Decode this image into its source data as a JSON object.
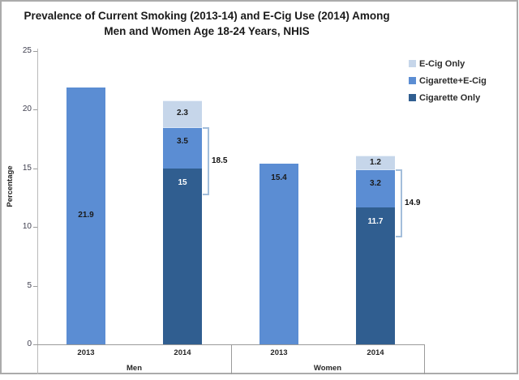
{
  "chart_data": {
    "type": "bar",
    "stacked": true,
    "title": "Prevalence of Current Smoking (2013-14) and E-Cig Use (2014) Among Men and Women Age 18-24 Years, NHIS",
    "title_line1": "Prevalence of Current Smoking (2013-14) and E-Cig Use (2014) Among",
    "title_line2": "Men and Women Age 18-24 Years, NHIS",
    "xlabel": "",
    "ylabel": "Percentage",
    "ylim": [
      0,
      25
    ],
    "yticks": [
      25,
      20,
      15,
      10,
      5,
      0
    ],
    "grid": false,
    "legend_position": "top-right",
    "legend": [
      {
        "label": "E-Cig Only",
        "color": "#c6d6ea"
      },
      {
        "label": "Cigarette+E-Cig",
        "color": "#5b8dd3"
      },
      {
        "label": "Cigarette Only",
        "color": "#305e90"
      }
    ],
    "colors": {
      "ecig_only": "#c6d6ea",
      "cigarette_plus_ecig": "#5b8dd3",
      "cigarette_only": "#305e90",
      "bracket": "#a3bedb",
      "axis": "#9a9a9a"
    },
    "groups": [
      {
        "label": "Men",
        "bars": [
          {
            "category": "2013",
            "segments": [
              {
                "name": "Current Smoking",
                "value": 21.9,
                "label": "21.9",
                "color": "#5b8dd3",
                "label_color": "#1a1a1a",
                "label_position": "center"
              }
            ]
          },
          {
            "category": "2014",
            "segments": [
              {
                "name": "Cigarette Only",
                "value": 15,
                "label": "15",
                "color": "#305e90",
                "label_color": "#ffffff",
                "label_position": "inside-end"
              },
              {
                "name": "Cigarette+E-Cig",
                "value": 3.5,
                "label": "3.5",
                "color": "#5b8dd3",
                "label_color": "#1a1a1a",
                "label_position": "inside-end"
              },
              {
                "name": "E-Cig Only",
                "value": 2.3,
                "label": "2.3",
                "color": "#c6d6ea",
                "label_color": "#1a1a1a",
                "label_position": "inside-end"
              }
            ],
            "bracket": {
              "value": 18.5,
              "label": "18.5"
            }
          }
        ]
      },
      {
        "label": "Women",
        "bars": [
          {
            "category": "2013",
            "segments": [
              {
                "name": "Current Smoking",
                "value": 15.4,
                "label": "15.4",
                "color": "#5b8dd3",
                "label_color": "#1a1a1a",
                "label_position": "inside-end"
              }
            ]
          },
          {
            "category": "2014",
            "segments": [
              {
                "name": "Cigarette Only",
                "value": 11.7,
                "label": "11.7",
                "color": "#305e90",
                "label_color": "#ffffff",
                "label_position": "inside-end"
              },
              {
                "name": "Cigarette+E-Cig",
                "value": 3.2,
                "label": "3.2",
                "color": "#5b8dd3",
                "label_color": "#1a1a1a",
                "label_position": "inside-end"
              },
              {
                "name": "E-Cig Only",
                "value": 1.2,
                "label": "1.2",
                "color": "#c6d6ea",
                "label_color": "#1a1a1a",
                "label_position": "inside-end"
              }
            ],
            "bracket": {
              "value": 14.9,
              "label": "14.9"
            }
          }
        ]
      }
    ]
  }
}
